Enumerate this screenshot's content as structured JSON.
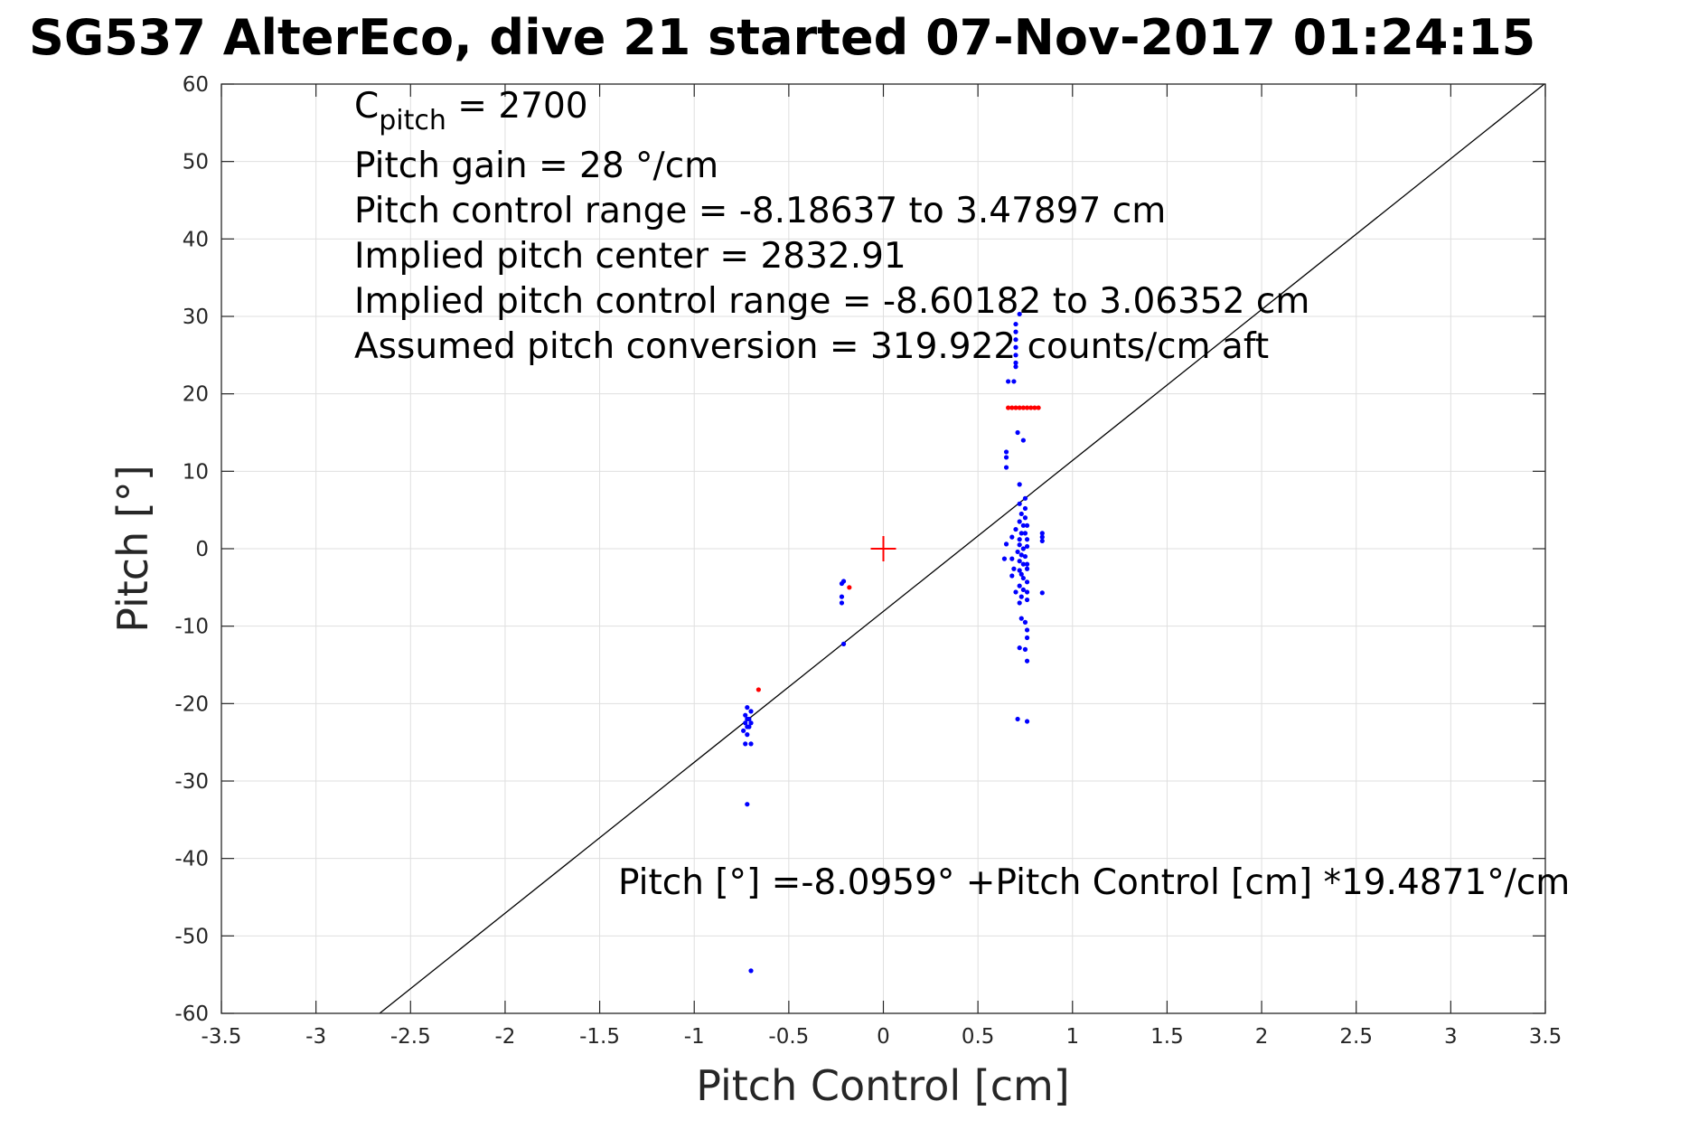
{
  "chart_data": {
    "type": "scatter",
    "title": "SG537 AlterEco, dive 21 started 07-Nov-2017 01:24:15",
    "xlabel": "Pitch Control [cm]",
    "ylabel": "Pitch [°]",
    "xlim": [
      -3.5,
      3.5
    ],
    "ylim": [
      -60,
      60
    ],
    "x_ticks": [
      -3.5,
      -3,
      -2.5,
      -2,
      -1.5,
      -1,
      -0.5,
      0,
      0.5,
      1,
      1.5,
      2,
      2.5,
      3,
      3.5
    ],
    "x_tick_labels": [
      "-3.5",
      "-3",
      "-2.5",
      "-2",
      "-1.5",
      "-1",
      "-0.5",
      "0",
      "0.5",
      "1",
      "1.5",
      "2",
      "2.5",
      "3",
      "3.5"
    ],
    "y_ticks": [
      60,
      50,
      40,
      30,
      20,
      10,
      0,
      -10,
      -20,
      -30,
      -40,
      -50,
      -60
    ],
    "y_tick_labels": [
      "60",
      "50",
      "40",
      "30",
      "20",
      "10",
      "0",
      "-10",
      "-20",
      "-30",
      "-40",
      "-50",
      "-60"
    ],
    "grid": true,
    "annotations": {
      "c_pitch_label": "C",
      "c_pitch_subscript": "pitch",
      "c_pitch_value": " = 2700",
      "lines": [
        "Pitch gain = 28 °/cm",
        "Pitch control range = -8.18637 to 3.47897 cm",
        "Implied pitch center = 2832.91",
        "Implied pitch control range = -8.60182 to 3.06352 cm",
        "Assumed pitch conversion = 319.922 counts/cm aft"
      ],
      "fit_equation": "Pitch [°] =-8.0959° +Pitch Control [cm] *19.4871°/cm"
    },
    "fit_line": {
      "intercept": -8.0959,
      "slope": 19.4871,
      "color": "#000000"
    },
    "center_marker": {
      "x": 0,
      "y": 0,
      "color": "#ff0000"
    },
    "series": [
      {
        "color": "#0000ff",
        "points": [
          [
            -0.72,
            -20.5
          ],
          [
            -0.73,
            -21.5
          ],
          [
            -0.72,
            -22.0
          ],
          [
            -0.73,
            -22.5
          ],
          [
            -0.72,
            -23.0
          ],
          [
            -0.74,
            -23.5
          ],
          [
            -0.7,
            -21.0
          ],
          [
            -0.71,
            -22.0
          ],
          [
            -0.7,
            -22.5
          ],
          [
            -0.71,
            -23.0
          ],
          [
            -0.72,
            -24.0
          ],
          [
            -0.73,
            -25.2
          ],
          [
            -0.7,
            -25.2
          ],
          [
            -0.72,
            -33.0
          ],
          [
            -0.7,
            -54.5
          ],
          [
            -0.21,
            -4.2
          ],
          [
            -0.22,
            -4.5
          ],
          [
            -0.22,
            -6.2
          ],
          [
            -0.22,
            -7.0
          ],
          [
            -0.21,
            -12.3
          ],
          [
            0.7,
            29.0
          ],
          [
            0.7,
            28.0
          ],
          [
            0.7,
            27.0
          ],
          [
            0.7,
            26.0
          ],
          [
            0.7,
            25.0
          ],
          [
            0.7,
            24.0
          ],
          [
            0.7,
            23.5
          ],
          [
            0.72,
            30.3
          ],
          [
            0.66,
            21.6
          ],
          [
            0.69,
            21.6
          ],
          [
            0.71,
            15.0
          ],
          [
            0.74,
            14.0
          ],
          [
            0.65,
            12.5
          ],
          [
            0.65,
            11.8
          ],
          [
            0.65,
            10.5
          ],
          [
            0.72,
            8.3
          ],
          [
            0.75,
            6.5
          ],
          [
            0.72,
            5.8
          ],
          [
            0.75,
            5.2
          ],
          [
            0.73,
            4.5
          ],
          [
            0.75,
            4.0
          ],
          [
            0.72,
            3.5
          ],
          [
            0.74,
            3.0
          ],
          [
            0.76,
            3.0
          ],
          [
            0.7,
            2.5
          ],
          [
            0.73,
            2.0
          ],
          [
            0.75,
            2.0
          ],
          [
            0.68,
            1.5
          ],
          [
            0.72,
            1.2
          ],
          [
            0.76,
            1.2
          ],
          [
            0.84,
            2.0
          ],
          [
            0.84,
            1.5
          ],
          [
            0.84,
            1.0
          ],
          [
            0.65,
            0.6
          ],
          [
            0.72,
            0.5
          ],
          [
            0.74,
            0.0
          ],
          [
            0.76,
            0.3
          ],
          [
            0.71,
            -0.4
          ],
          [
            0.73,
            -0.8
          ],
          [
            0.64,
            -1.3
          ],
          [
            0.68,
            -1.3
          ],
          [
            0.75,
            -1.0
          ],
          [
            0.72,
            -1.6
          ],
          [
            0.74,
            -2.0
          ],
          [
            0.76,
            -2.0
          ],
          [
            0.69,
            -2.6
          ],
          [
            0.72,
            -2.8
          ],
          [
            0.76,
            -2.6
          ],
          [
            0.73,
            -3.3
          ],
          [
            0.68,
            -3.5
          ],
          [
            0.74,
            -3.8
          ],
          [
            0.76,
            -4.3
          ],
          [
            0.72,
            -4.8
          ],
          [
            0.74,
            -5.3
          ],
          [
            0.7,
            -5.6
          ],
          [
            0.76,
            -5.6
          ],
          [
            0.84,
            -5.7
          ],
          [
            0.73,
            -6.2
          ],
          [
            0.76,
            -6.6
          ],
          [
            0.72,
            -7.0
          ],
          [
            0.73,
            -9.0
          ],
          [
            0.75,
            -9.5
          ],
          [
            0.76,
            -10.5
          ],
          [
            0.76,
            -11.5
          ],
          [
            0.72,
            -12.8
          ],
          [
            0.75,
            -13.0
          ],
          [
            0.76,
            -14.5
          ],
          [
            0.71,
            -22.0
          ],
          [
            0.76,
            -22.3
          ]
        ]
      },
      {
        "color": "#ff0000",
        "points": [
          [
            -0.66,
            -18.2
          ],
          [
            -0.18,
            -5.0
          ],
          [
            0.66,
            18.2
          ],
          [
            0.68,
            18.2
          ],
          [
            0.7,
            18.2
          ],
          [
            0.72,
            18.2
          ],
          [
            0.74,
            18.2
          ],
          [
            0.76,
            18.2
          ],
          [
            0.78,
            18.2
          ],
          [
            0.8,
            18.2
          ],
          [
            0.82,
            18.2
          ]
        ]
      }
    ]
  }
}
